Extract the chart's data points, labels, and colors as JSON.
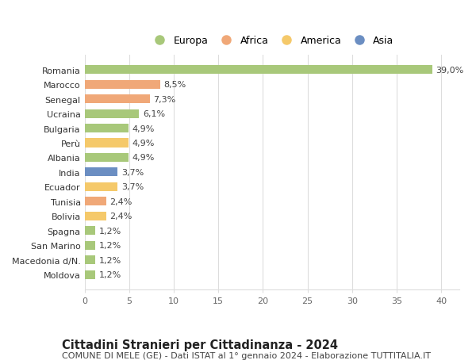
{
  "categories": [
    "Moldova",
    "Macedonia d/N.",
    "San Marino",
    "Spagna",
    "Bolivia",
    "Tunisia",
    "Ecuador",
    "India",
    "Albania",
    "Perù",
    "Bulgaria",
    "Ucraina",
    "Senegal",
    "Marocco",
    "Romania"
  ],
  "values": [
    1.2,
    1.2,
    1.2,
    1.2,
    2.4,
    2.4,
    3.7,
    3.7,
    4.9,
    4.9,
    4.9,
    6.1,
    7.3,
    8.5,
    39.0
  ],
  "labels": [
    "1,2%",
    "1,2%",
    "1,2%",
    "1,2%",
    "2,4%",
    "2,4%",
    "3,7%",
    "3,7%",
    "4,9%",
    "4,9%",
    "4,9%",
    "6,1%",
    "7,3%",
    "8,5%",
    "39,0%"
  ],
  "colors": [
    "#a8c87a",
    "#a8c87a",
    "#a8c87a",
    "#a8c87a",
    "#f5c96a",
    "#f0a878",
    "#f5c96a",
    "#6b8ec2",
    "#a8c87a",
    "#f5c96a",
    "#a8c87a",
    "#a8c87a",
    "#f0a878",
    "#f0a878",
    "#a8c87a"
  ],
  "legend": [
    {
      "label": "Europa",
      "color": "#a8c87a"
    },
    {
      "label": "Africa",
      "color": "#f0a878"
    },
    {
      "label": "America",
      "color": "#f5c96a"
    },
    {
      "label": "Asia",
      "color": "#6b8ec2"
    }
  ],
  "xlim": [
    0,
    42
  ],
  "xticks": [
    0,
    5,
    10,
    15,
    20,
    25,
    30,
    35,
    40
  ],
  "title": "Cittadini Stranieri per Cittadinanza - 2024",
  "subtitle": "COMUNE DI MELE (GE) - Dati ISTAT al 1° gennaio 2024 - Elaborazione TUTTITALIA.IT",
  "background_color": "#ffffff",
  "grid_color": "#dddddd",
  "bar_height": 0.6,
  "label_fontsize": 8,
  "tick_fontsize": 8,
  "title_fontsize": 10.5,
  "subtitle_fontsize": 8
}
